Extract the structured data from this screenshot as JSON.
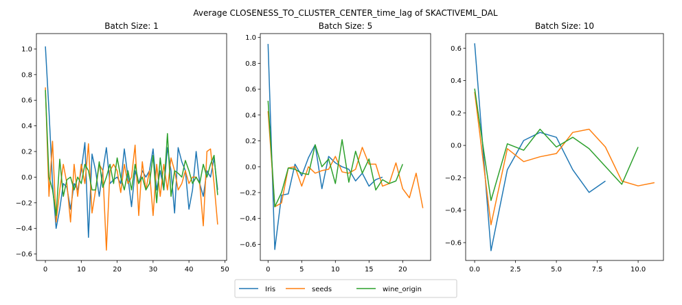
{
  "chart_data": {
    "suptitle": "Average CLOSENESS_TO_CLUSTER_CENTER_time_lag of SKACTIVEML_DAL",
    "legend": {
      "placement": "bottom-center",
      "entries": [
        "Iris",
        "seeds",
        "wine_origin"
      ]
    },
    "colors": {
      "Iris": "#1f77b4",
      "seeds": "#ff7f0e",
      "wine_origin": "#2ca02c"
    },
    "panels": [
      {
        "type": "line",
        "title": "Batch Size: 1",
        "xlim": [
          -2.5,
          50.5
        ],
        "ylim": [
          -0.65,
          1.12
        ],
        "xticks": [
          0,
          10,
          20,
          30,
          40,
          50
        ],
        "yticks": [
          -0.6,
          -0.4,
          -0.2,
          0.0,
          0.2,
          0.4,
          0.6,
          0.8,
          1.0
        ],
        "ytick_labels": [
          "−0.6",
          "−0.4",
          "−0.2",
          "0.0",
          "0.2",
          "0.4",
          "0.6",
          "0.8",
          "1.0"
        ],
        "series": [
          {
            "name": "Iris",
            "values": [
              1.02,
              0.52,
              -0.05,
              -0.4,
              -0.25,
              -0.05,
              -0.08,
              -0.25,
              -0.05,
              -0.1,
              0.05,
              0.27,
              -0.47,
              0.18,
              0.05,
              -0.15,
              0.05,
              0.23,
              -0.05,
              -0.02,
              0.0,
              -0.05,
              0.22,
              0.0,
              -0.23,
              0.05,
              -0.05,
              0.05,
              0.0,
              0.05,
              0.22,
              -0.1,
              0.05,
              -0.1,
              0.23,
              0.05,
              -0.28,
              0.23,
              0.12,
              0.05,
              -0.25,
              -0.1,
              0.2,
              -0.05,
              -0.15,
              0.05,
              0.0,
              0.15,
              -0.1
            ]
          },
          {
            "name": "seeds",
            "values": [
              0.7,
              -0.15,
              0.28,
              -0.35,
              -0.1,
              0.1,
              -0.05,
              -0.35,
              0.1,
              -0.15,
              0.1,
              -0.05,
              0.26,
              -0.28,
              -0.1,
              0.1,
              0.05,
              -0.57,
              0.05,
              0.1,
              0.05,
              -0.12,
              0.1,
              -0.05,
              0.0,
              0.25,
              -0.3,
              0.12,
              -0.1,
              0.05,
              -0.3,
              0.1,
              -0.15,
              0.1,
              -0.1,
              0.15,
              0.05,
              -0.1,
              -0.05,
              0.05,
              -0.05,
              0.0,
              0.0,
              -0.05,
              -0.38,
              0.2,
              0.22,
              -0.05,
              -0.37
            ]
          },
          {
            "name": "wine_origin",
            "values": [
              0.68,
              0.0,
              -0.1,
              -0.3,
              0.14,
              -0.15,
              -0.02,
              0.0,
              -0.1,
              0.0,
              -0.05,
              0.1,
              0.05,
              -0.1,
              -0.1,
              0.12,
              -0.08,
              0.0,
              0.1,
              -0.05,
              0.15,
              0.0,
              -0.1,
              0.05,
              -0.1,
              0.1,
              -0.05,
              0.0,
              -0.1,
              -0.05,
              0.17,
              -0.2,
              0.15,
              -0.1,
              0.34,
              -0.15,
              0.05,
              0.03,
              0.0,
              0.13,
              0.05,
              -0.05,
              0.0,
              -0.05,
              0.1,
              0.0,
              0.1,
              0.17,
              -0.14
            ]
          }
        ]
      },
      {
        "type": "line",
        "title": "Batch Size: 5",
        "xlim": [
          -1.15,
          24.15
        ],
        "ylim": [
          -0.725,
          1.03
        ],
        "xticks": [
          0,
          5,
          10,
          15,
          20
        ],
        "yticks": [
          -0.6,
          -0.4,
          -0.2,
          0.0,
          0.2,
          0.4,
          0.6,
          0.8,
          1.0
        ],
        "ytick_labels": [
          "−0.6",
          "−0.4",
          "−0.2",
          "0.0",
          "0.2",
          "0.4",
          "0.6",
          "0.8",
          "1.0"
        ],
        "series": [
          {
            "name": "Iris",
            "values": [
              0.95,
              -0.64,
              -0.22,
              -0.21,
              0.02,
              -0.07,
              0.07,
              0.17,
              -0.17,
              0.08,
              0.03,
              0.0,
              -0.02,
              -0.11,
              -0.05,
              -0.15,
              -0.1,
              -0.08
            ]
          },
          {
            "name": "seeds",
            "values": [
              0.43,
              -0.31,
              -0.28,
              -0.01,
              0.0,
              -0.15,
              0.0,
              -0.05,
              -0.03,
              -0.02,
              0.08,
              -0.04,
              -0.05,
              -0.02,
              0.15,
              0.02,
              0.02,
              -0.15,
              -0.13,
              0.03,
              -0.17,
              -0.24,
              -0.05,
              -0.32
            ]
          },
          {
            "name": "wine_origin",
            "values": [
              0.51,
              -0.31,
              -0.2,
              -0.01,
              -0.02,
              -0.05,
              -0.06,
              0.17,
              0.0,
              0.06,
              -0.13,
              0.21,
              -0.12,
              0.12,
              -0.05,
              0.06,
              -0.18,
              -0.1,
              -0.13,
              -0.11,
              0.02
            ]
          }
        ]
      },
      {
        "type": "line",
        "title": "Batch Size: 10",
        "xlim": [
          -0.55,
          11.55
        ],
        "ylim": [
          -0.71,
          0.69
        ],
        "xticks": [
          0,
          2.5,
          5,
          7.5,
          10
        ],
        "xtick_labels": [
          "0.0",
          "2.5",
          "5.0",
          "7.5",
          "10.0"
        ],
        "yticks": [
          -0.6,
          -0.4,
          -0.2,
          0.0,
          0.2,
          0.4,
          0.6
        ],
        "ytick_labels": [
          "−0.6",
          "−0.4",
          "−0.2",
          "0.0",
          "0.2",
          "0.4",
          "0.6"
        ],
        "series": [
          {
            "name": "Iris",
            "values": [
              0.63,
              -0.65,
              -0.15,
              0.03,
              0.08,
              0.05,
              -0.15,
              -0.29,
              -0.22
            ]
          },
          {
            "name": "seeds",
            "values": [
              0.33,
              -0.49,
              -0.02,
              -0.1,
              -0.07,
              -0.05,
              0.08,
              0.1,
              -0.01,
              -0.22,
              -0.25,
              -0.23
            ]
          },
          {
            "name": "wine_origin",
            "values": [
              0.35,
              -0.34,
              0.01,
              -0.03,
              0.1,
              -0.01,
              0.05,
              -0.02,
              -0.13,
              -0.24,
              -0.01
            ]
          }
        ]
      }
    ]
  }
}
